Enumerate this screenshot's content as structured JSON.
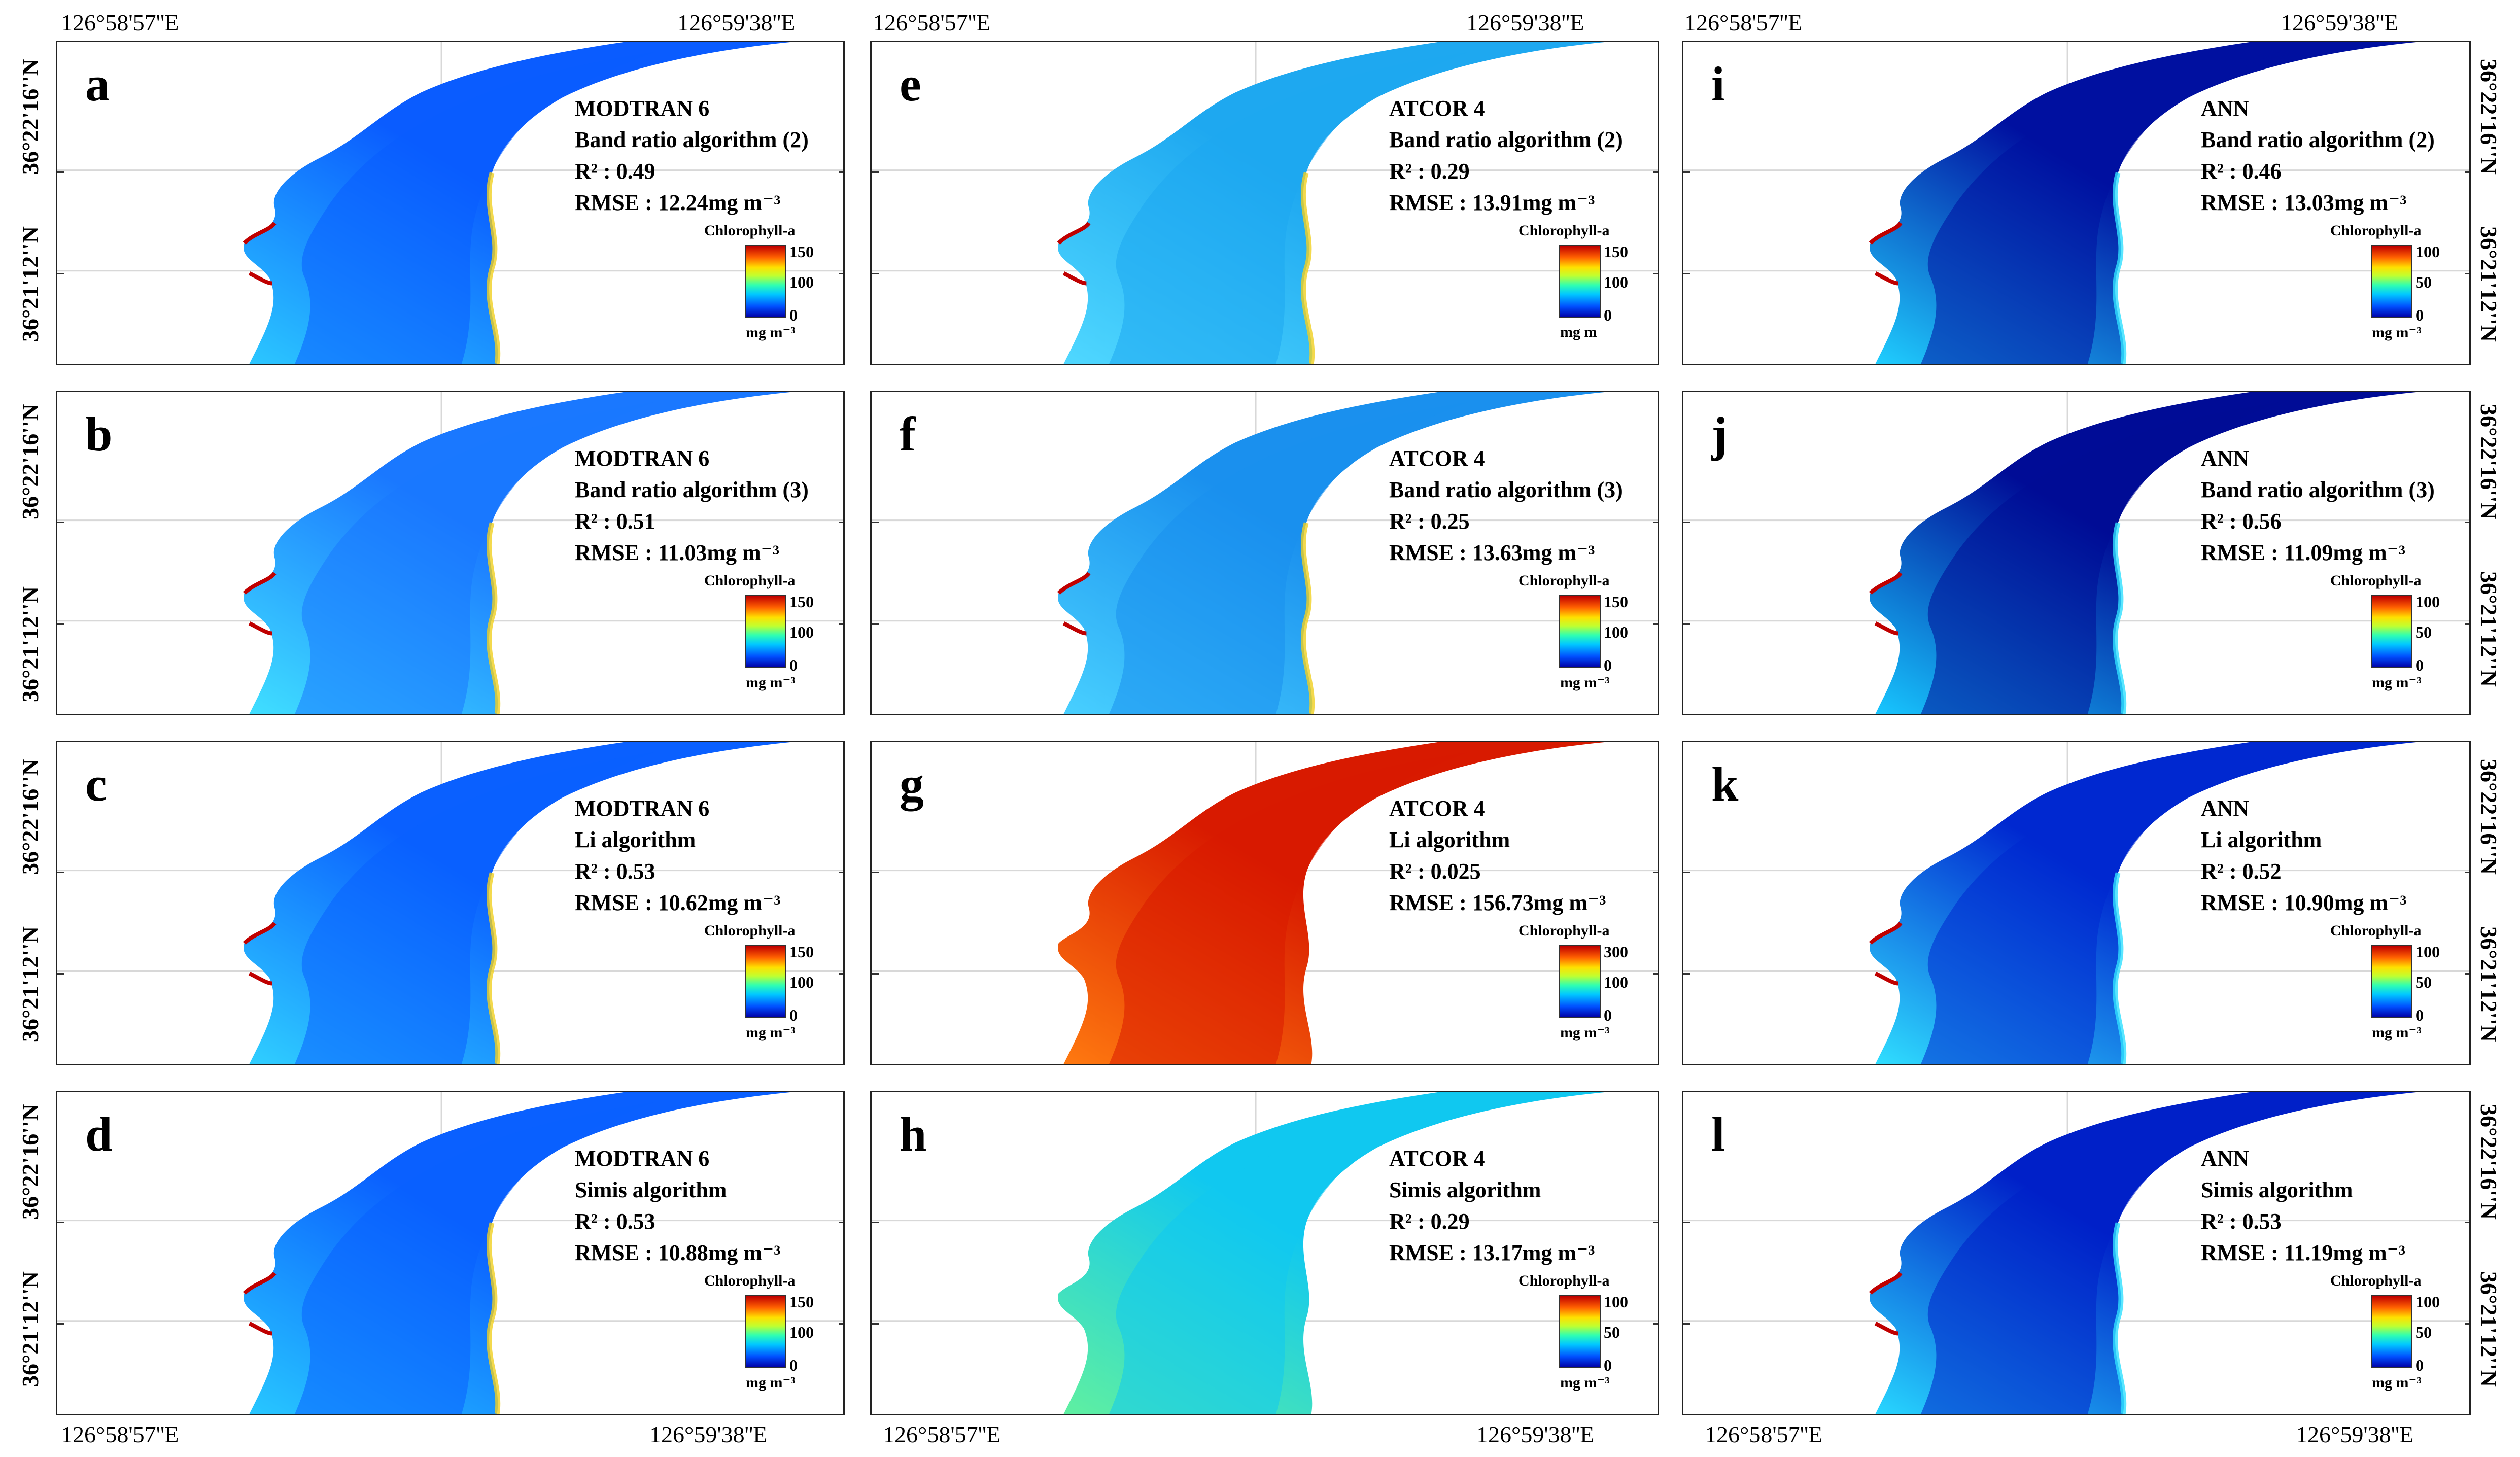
{
  "coords": {
    "lon_west": "126°58'57''E",
    "lon_east": "126°59'38''E",
    "lat_north": "36°22'16''N",
    "lat_south": "36°21'12''N"
  },
  "legend": {
    "title": "Chlorophyll-a",
    "unit": "mg m⁻³",
    "unit_alt": "mg m"
  },
  "panels": [
    {
      "letter": "a",
      "model": "MODTRAN 6",
      "algorithm": "Band ratio algorithm (2)",
      "r2": "R² : 0.49",
      "rmse": "RMSE : 12.24mg m⁻³",
      "scale": [
        "150",
        "100",
        "0"
      ],
      "unit": "mg m⁻³",
      "palette": "modtran",
      "clow": "#0a5cff",
      "chigh": "#2cc8ff"
    },
    {
      "letter": "e",
      "model": "ATCOR 4",
      "algorithm": "Band ratio algorithm (2)",
      "r2": "R² : 0.29",
      "rmse": "RMSE : 13.91mg m⁻³",
      "scale": [
        "150",
        "100",
        "0"
      ],
      "unit": "mg m",
      "palette": "atcor",
      "clow": "#1ea8f0",
      "chigh": "#50d8ff"
    },
    {
      "letter": "i",
      "model": "ANN",
      "algorithm": "Band ratio algorithm (2)",
      "r2": "R² : 0.46",
      "rmse": "RMSE : 13.03mg m⁻³",
      "scale": [
        "100",
        "50",
        "0"
      ],
      "unit": "mg m⁻³",
      "palette": "ann",
      "clow": "#0010a0",
      "chigh": "#20d0ff"
    },
    {
      "letter": "b",
      "model": "MODTRAN 6",
      "algorithm": "Band ratio algorithm (3)",
      "r2": "R² : 0.51",
      "rmse": "RMSE : 11.03mg m⁻³",
      "scale": [
        "150",
        "100",
        "0"
      ],
      "unit": "mg m⁻³",
      "palette": "modtran",
      "clow": "#1a78ff",
      "chigh": "#40e0ff"
    },
    {
      "letter": "f",
      "model": "ATCOR 4",
      "algorithm": "Band ratio algorithm (3)",
      "r2": "R² : 0.25",
      "rmse": "RMSE : 13.63mg m⁻³",
      "scale": [
        "150",
        "100",
        "0"
      ],
      "unit": "mg m⁻³",
      "palette": "atcor",
      "clow": "#1a90ee",
      "chigh": "#48d0ff"
    },
    {
      "letter": "j",
      "model": "ANN",
      "algorithm": "Band ratio algorithm (3)",
      "r2": "R² : 0.56",
      "rmse": "RMSE : 11.09mg m⁻³",
      "scale": [
        "100",
        "50",
        "0"
      ],
      "unit": "mg m⁻³",
      "palette": "ann",
      "clow": "#000c96",
      "chigh": "#18c8ff"
    },
    {
      "letter": "c",
      "model": "MODTRAN 6",
      "algorithm": "Li algorithm",
      "r2": "R² : 0.53",
      "rmse": "RMSE : 10.62mg m⁻³",
      "scale": [
        "150",
        "100",
        "0"
      ],
      "unit": "mg m⁻³",
      "palette": "modtran",
      "clow": "#0a60ff",
      "chigh": "#30d0ff"
    },
    {
      "letter": "g",
      "model": "ATCOR 4",
      "algorithm": "Li algorithm",
      "r2": "R² : 0.025",
      "rmse": "RMSE : 156.73mg m⁻³",
      "scale": [
        "300",
        "100",
        "0"
      ],
      "unit": "mg m⁻³",
      "palette": "red",
      "clow": "#d81a00",
      "chigh": "#ff7a10"
    },
    {
      "letter": "k",
      "model": "ANN",
      "algorithm": "Li algorithm",
      "r2": "R² : 0.52",
      "rmse": "RMSE : 10.90mg m⁻³",
      "scale": [
        "100",
        "50",
        "0"
      ],
      "unit": "mg m⁻³",
      "palette": "ann",
      "clow": "#0028d0",
      "chigh": "#30e0ff"
    },
    {
      "letter": "d",
      "model": "MODTRAN 6",
      "algorithm": "Simis algorithm",
      "r2": "R² : 0.53",
      "rmse": "RMSE : 10.88mg m⁻³",
      "scale": [
        "150",
        "100",
        "0"
      ],
      "unit": "mg m⁻³",
      "palette": "modtran",
      "clow": "#0a60ff",
      "chigh": "#28c8ff"
    },
    {
      "letter": "h",
      "model": "ATCOR 4",
      "algorithm": "Simis algorithm",
      "r2": "R² : 0.29",
      "rmse": "RMSE : 13.17mg m⁻³",
      "scale": [
        "100",
        "50",
        "0"
      ],
      "unit": "mg m⁻³",
      "palette": "cyan",
      "clow": "#10c8f0",
      "chigh": "#60f0a0"
    },
    {
      "letter": "l",
      "model": "ANN",
      "algorithm": "Simis algorithm",
      "r2": "R² : 0.53",
      "rmse": "RMSE : 11.19mg m⁻³",
      "scale": [
        "100",
        "50",
        "0"
      ],
      "unit": "mg m⁻³",
      "palette": "ann",
      "clow": "#0020c8",
      "chigh": "#28d8ff"
    }
  ]
}
